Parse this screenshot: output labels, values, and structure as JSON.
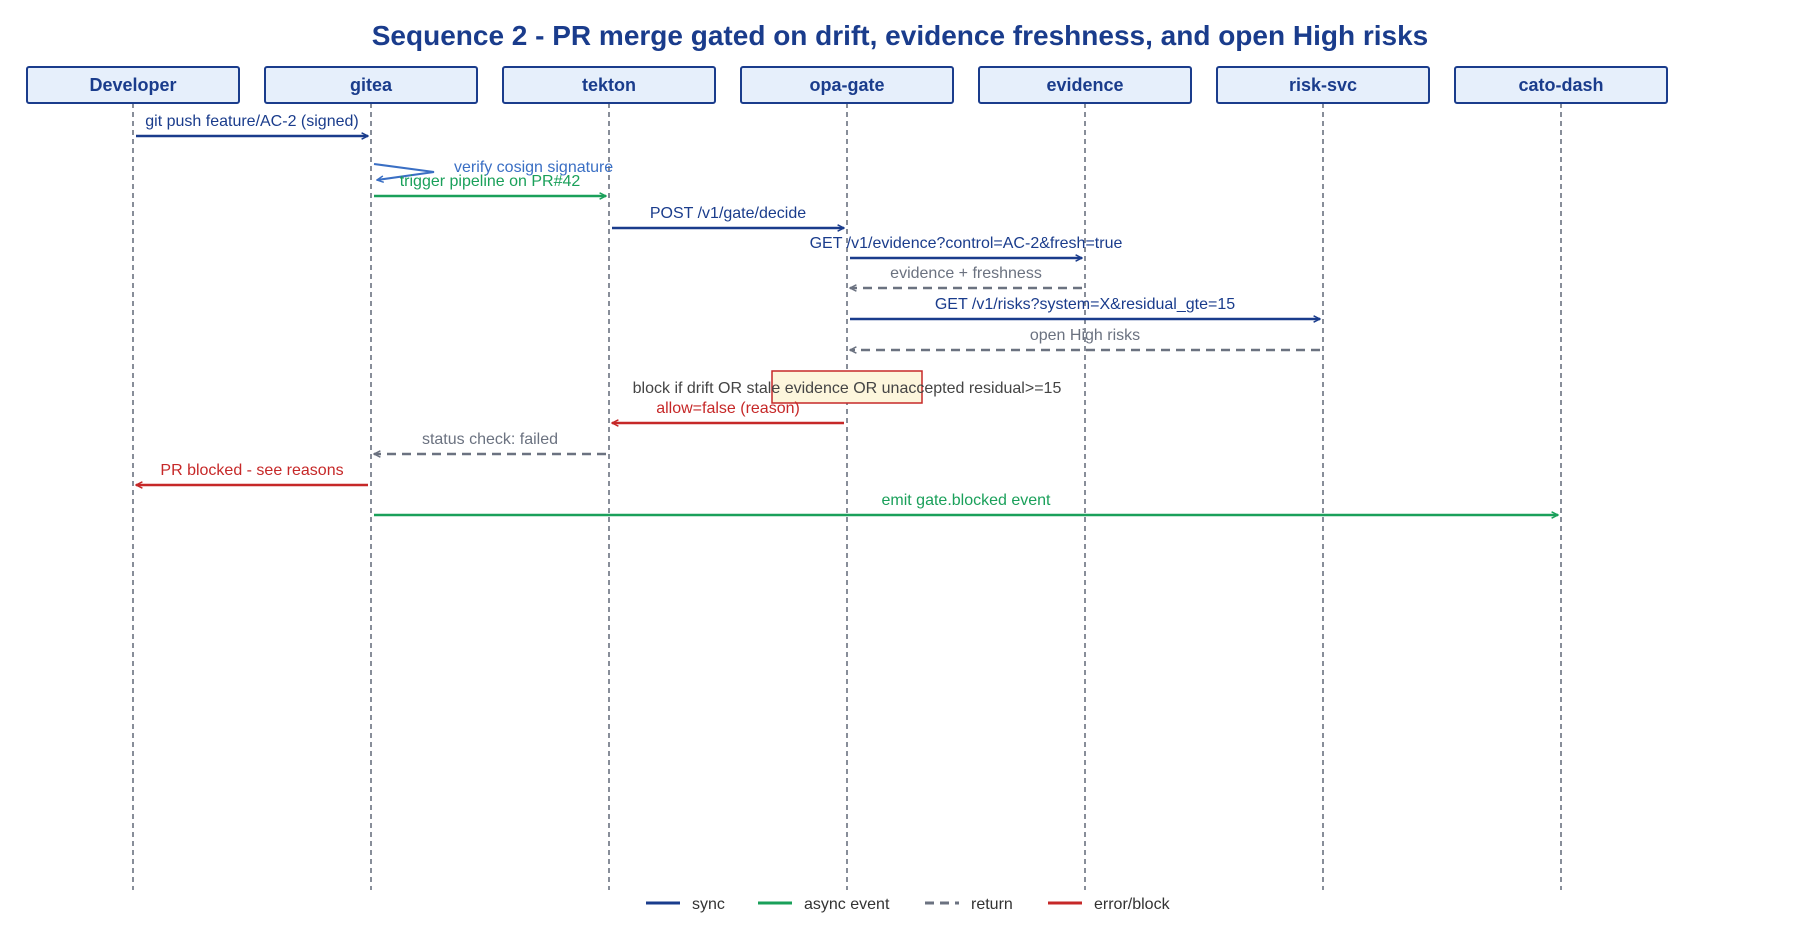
{
  "title": "Sequence 2 - PR merge gated on drift, evidence freshness, and open High risks",
  "participants": [
    {
      "id": "developer",
      "label": "Developer"
    },
    {
      "id": "gitea",
      "label": "gitea"
    },
    {
      "id": "tekton",
      "label": "tekton"
    },
    {
      "id": "opa-gate",
      "label": "opa-gate"
    },
    {
      "id": "evidence",
      "label": "evidence"
    },
    {
      "id": "risk-svc",
      "label": "risk-svc"
    },
    {
      "id": "cato-dash",
      "label": "cato-dash"
    }
  ],
  "messages": [
    {
      "from": 0,
      "to": 1,
      "kind": "sync",
      "label": "git push feature/AC-2 (signed)"
    },
    {
      "from": 1,
      "to": 1,
      "kind": "self",
      "label": "verify cosign signature"
    },
    {
      "from": 1,
      "to": 2,
      "kind": "async",
      "label": "trigger pipeline on PR#42"
    },
    {
      "from": 2,
      "to": 3,
      "kind": "sync",
      "label": "POST /v1/gate/decide"
    },
    {
      "from": 3,
      "to": 4,
      "kind": "sync",
      "label": "GET /v1/evidence?control=AC-2&fresh=true"
    },
    {
      "from": 4,
      "to": 3,
      "kind": "return",
      "label": "evidence + freshness"
    },
    {
      "from": 3,
      "to": 5,
      "kind": "sync",
      "label": "GET /v1/risks?system=X&residual_gte=15"
    },
    {
      "from": 5,
      "to": 3,
      "kind": "return",
      "label": "open High risks"
    },
    {
      "from": 3,
      "to": 3,
      "kind": "note",
      "label": "block if drift OR stale evidence OR unaccepted residual>=15"
    },
    {
      "from": 3,
      "to": 2,
      "kind": "error",
      "label": "allow=false (reason)"
    },
    {
      "from": 2,
      "to": 1,
      "kind": "return",
      "label": "status check: failed"
    },
    {
      "from": 1,
      "to": 0,
      "kind": "error",
      "label": "PR blocked - see reasons"
    },
    {
      "from": 1,
      "to": 6,
      "kind": "async",
      "label": "emit gate.blocked event"
    }
  ],
  "legend": [
    {
      "kind": "sync",
      "label": "sync"
    },
    {
      "kind": "async",
      "label": "async event"
    },
    {
      "kind": "return",
      "label": "return"
    },
    {
      "kind": "error",
      "label": "error/block"
    }
  ],
  "colors": {
    "sync": "#1a3c8c",
    "async": "#1aa05a",
    "return": "#6b7280",
    "error": "#c62828",
    "self": "#3a6fc4",
    "title": "#1a3c8c",
    "box_fill": "#e6effb",
    "box_stroke": "#1a3c8c",
    "note_fill": "#fdf6dc",
    "note_stroke": "#c62828",
    "note_text": "#444444",
    "lifeline": "#6b7280"
  }
}
